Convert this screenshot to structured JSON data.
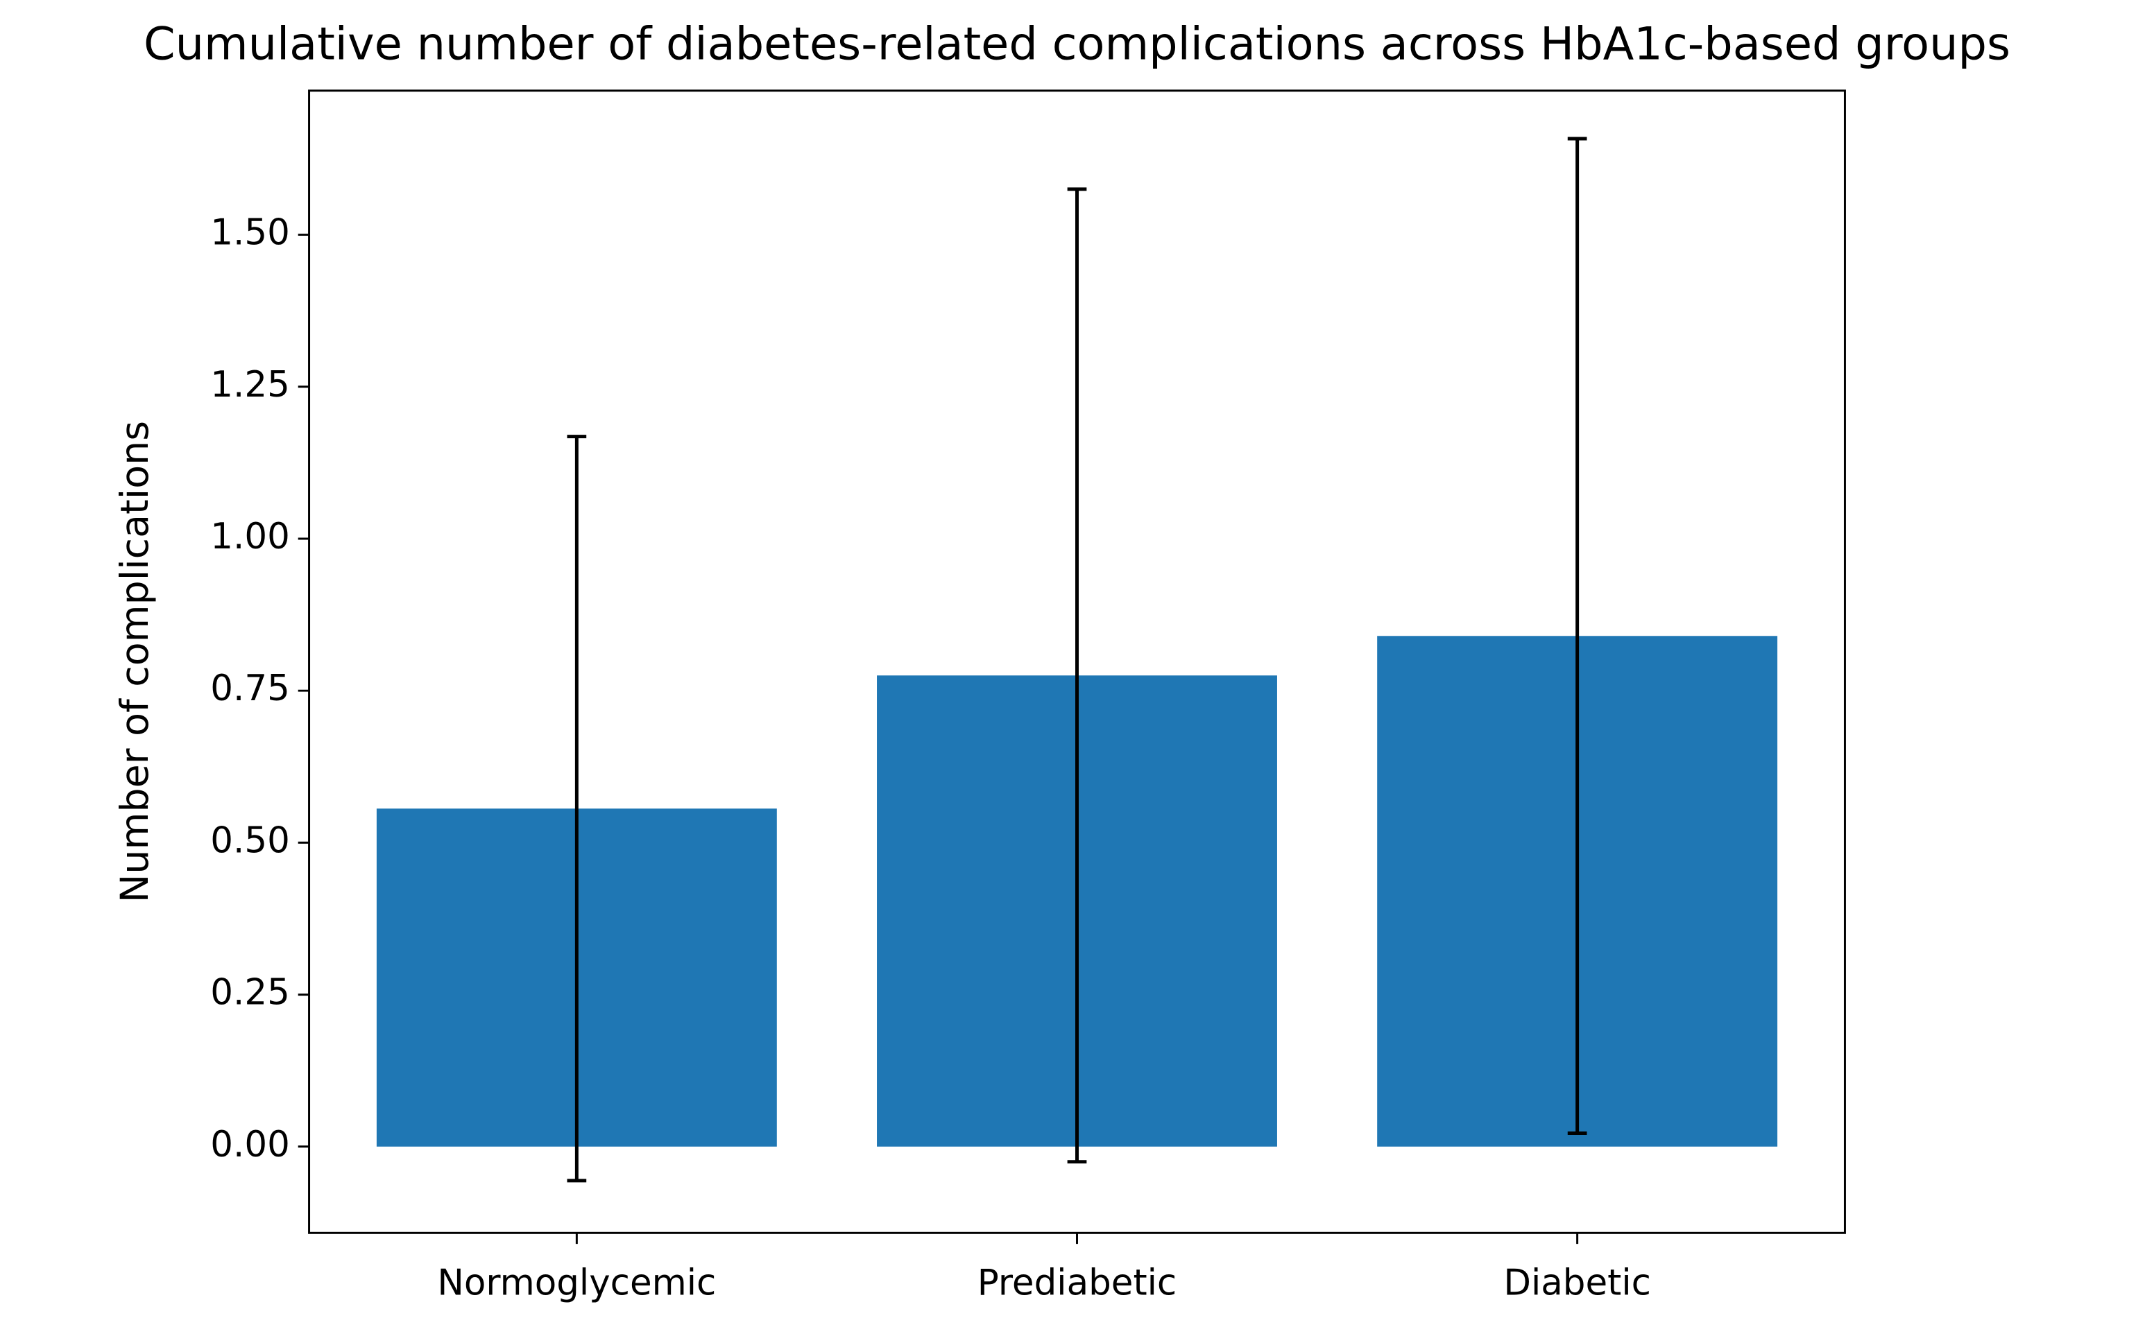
{
  "chart_data": {
    "type": "bar",
    "title": "Cumulative number of diabetes-related complications across HbA1c-based groups",
    "ylabel": "Number of complications",
    "categories": [
      "Normoglycemic",
      "Prediabetic",
      "Diabetic"
    ],
    "values": [
      0.556,
      0.775,
      0.84
    ],
    "errors": [
      0.612,
      0.8,
      0.818
    ],
    "color": "#1f77b4",
    "ylim": [
      -0.142,
      1.737
    ],
    "yticks": [
      {
        "value": 0,
        "label": "0.00"
      },
      {
        "value": 0.25,
        "label": "0.25"
      },
      {
        "value": 0.5,
        "label": "0.50"
      },
      {
        "value": 0.75,
        "label": "0.75"
      },
      {
        "value": 1,
        "label": "1.00"
      },
      {
        "value": 1.25,
        "label": "1.25"
      },
      {
        "value": 1.5,
        "label": "1.50"
      }
    ],
    "grid": false
  }
}
